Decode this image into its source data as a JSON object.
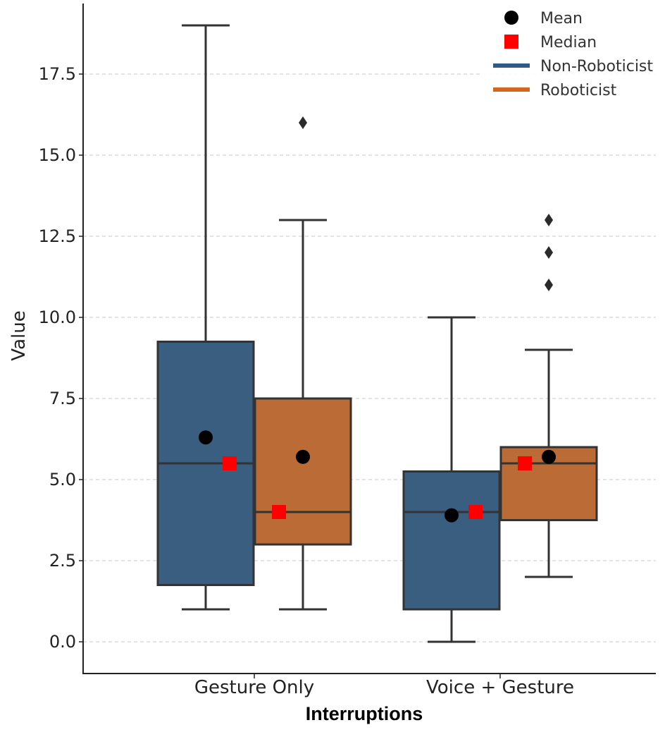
{
  "chart_data": {
    "type": "box",
    "xlabel": "Interruptions",
    "ylabel": "Value",
    "ylim": [
      -0.95,
      19.7
    ],
    "yticks": [
      0.0,
      2.5,
      5.0,
      7.5,
      10.0,
      12.5,
      15.0,
      17.5
    ],
    "ytick_labels": [
      "0.0",
      "2.5",
      "5.0",
      "7.5",
      "10.0",
      "12.5",
      "15.0",
      "17.5"
    ],
    "grid": "horizontal dashed",
    "categories": [
      "Gesture Only",
      "Voice + Gesture"
    ],
    "series": [
      {
        "name": "Non-Roboticist",
        "color": "#3a5e80",
        "boxes": [
          {
            "category": "Gesture Only",
            "whisker_low": 1.0,
            "q1": 1.75,
            "median": 5.5,
            "q3": 9.25,
            "whisker_high": 19.0,
            "mean": 6.3,
            "outliers": []
          },
          {
            "category": "Voice + Gesture",
            "whisker_low": 0.0,
            "q1": 1.0,
            "median": 4.0,
            "q3": 5.25,
            "whisker_high": 10.0,
            "mean": 3.9,
            "outliers": []
          }
        ]
      },
      {
        "name": "Roboticist",
        "color": "#bb6c36",
        "boxes": [
          {
            "category": "Gesture Only",
            "whisker_low": 1.0,
            "q1": 3.0,
            "median": 4.0,
            "q3": 7.5,
            "whisker_high": 13.0,
            "mean": 5.7,
            "outliers": [
              16.0
            ]
          },
          {
            "category": "Voice + Gesture",
            "whisker_low": 2.0,
            "q1": 3.75,
            "median": 5.5,
            "q3": 6.0,
            "whisker_high": 9.0,
            "mean": 5.7,
            "outliers": [
              11.0,
              12.0,
              13.0
            ]
          }
        ]
      }
    ],
    "median_markers": [
      {
        "category": "Gesture Only",
        "value": 5.5
      },
      {
        "category": "Gesture Only",
        "value": 4.0
      },
      {
        "category": "Voice + Gesture",
        "value": 4.0
      },
      {
        "category": "Voice + Gesture",
        "value": 5.5
      }
    ],
    "legend": {
      "position": "top-right",
      "entries": [
        {
          "label": "Mean",
          "kind": "circle",
          "color": "#000000"
        },
        {
          "label": "Median",
          "kind": "square",
          "color": "#ff0000"
        },
        {
          "label": "Non-Roboticist",
          "kind": "line",
          "color": "#2d5b85"
        },
        {
          "label": "Roboticist",
          "kind": "line",
          "color": "#d3671f"
        }
      ]
    }
  }
}
